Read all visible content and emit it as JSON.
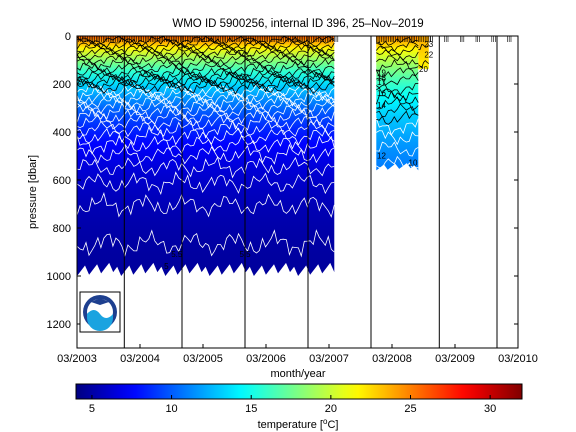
{
  "chart_data": {
    "type": "heatmap",
    "title": "WMO ID 5900256, internal ID 396, 25–Nov–2019",
    "xlabel": "month/year",
    "ylabel": "pressure [dbar]",
    "x_ticks": [
      "03/2003",
      "03/2004",
      "03/2005",
      "03/2006",
      "03/2007",
      "03/2008",
      "03/2009",
      "03/2010"
    ],
    "xlim": [
      "2003-03",
      "2010-03"
    ],
    "y_ticks": [
      0,
      200,
      400,
      600,
      800,
      1000,
      1200
    ],
    "ylim": [
      1300,
      0
    ],
    "y_reversed": true,
    "colorbar": {
      "label": "temperature [°C]",
      "ticks": [
        5,
        10,
        15,
        20,
        25,
        30
      ],
      "range": [
        4,
        32
      ],
      "colormap": "jet"
    },
    "contour_labels": [
      {
        "value": "12",
        "date": "2008-01",
        "pressure": 510
      },
      {
        "value": "14",
        "date": "2008-01",
        "pressure": 300
      },
      {
        "value": "16",
        "date": "2008-01",
        "pressure": 250
      },
      {
        "value": "17",
        "date": "2008-01",
        "pressure": 205
      },
      {
        "value": "18",
        "date": "2008-01",
        "pressure": 185
      },
      {
        "value": "19",
        "date": "2008-01",
        "pressure": 165
      },
      {
        "value": "10",
        "date": "2008-07",
        "pressure": 540
      },
      {
        "value": "20",
        "date": "2008-09",
        "pressure": 150
      },
      {
        "value": "22",
        "date": "2008-10",
        "pressure": 90
      },
      {
        "value": "23",
        "date": "2008-10",
        "pressure": 45
      },
      {
        "value": "5.5",
        "date": "2004-10",
        "pressure": 920
      },
      {
        "value": "5.5",
        "date": "2005-11",
        "pressure": 920
      },
      {
        "value": "5",
        "date": "2004-08",
        "pressure": 970
      }
    ],
    "data_extent": [
      {
        "from": "2003-03",
        "to": "2007-04",
        "max_pressure": 1000,
        "min_temp": 4.5,
        "surface_temp": 26
      },
      {
        "from": "2007-12",
        "to": "2008-08",
        "max_pressure": 560,
        "min_temp": 9.5,
        "surface_temp": 25
      },
      {
        "from": "2008-08",
        "to": "2008-10",
        "max_pressure": 140,
        "min_temp": 19,
        "surface_temp": 24
      }
    ],
    "vertical_lines": [
      "2003-12",
      "2004-11",
      "2005-11",
      "2006-11",
      "2007-11",
      "2008-12",
      "2009-11"
    ],
    "logo": "NOAA"
  }
}
